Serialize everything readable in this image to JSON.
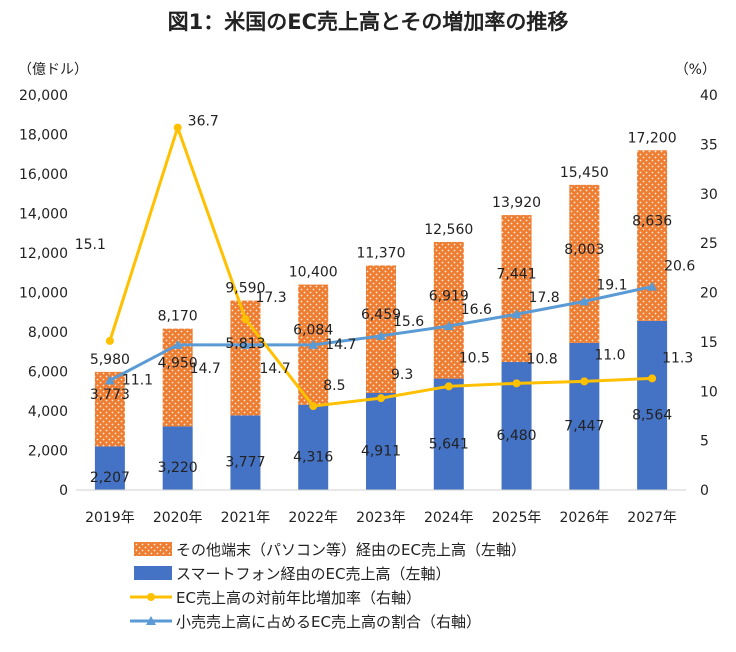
{
  "chart_data": {
    "type": "bar",
    "title": "図1：米国のEC売上高とその増加率の推移",
    "left_unit": "（億ドル）",
    "right_unit": "（%）",
    "categories": [
      "2019年",
      "2020年",
      "2021年",
      "2022年",
      "2023年",
      "2024年",
      "2025年",
      "2026年",
      "2027年"
    ],
    "stacked": true,
    "ylim": [
      0,
      20000
    ],
    "y_ticks": [
      "0",
      "2,000",
      "4,000",
      "6,000",
      "8,000",
      "10,000",
      "12,000",
      "14,000",
      "16,000",
      "18,000",
      "20,000"
    ],
    "y2lim": [
      0,
      40
    ],
    "y2_ticks": [
      "0",
      "5",
      "10",
      "15",
      "20",
      "25",
      "30",
      "35",
      "40"
    ],
    "grid": false,
    "legend_position": "bottom",
    "bar_series": [
      {
        "name": "スマートフォン経由のEC売上高（左軸）",
        "color": "#4472C4",
        "values": [
          2207,
          3220,
          3777,
          4316,
          4911,
          5641,
          6480,
          7447,
          8564
        ],
        "labels": [
          "2,207",
          "3,220",
          "3,777",
          "4,316",
          "4,911",
          "5,641",
          "6,480",
          "7,447",
          "8,564"
        ]
      },
      {
        "name": "その他端末（パソコン等）経由のEC売上高（左軸）",
        "color": "#ED7D31",
        "values": [
          3773,
          4950,
          5813,
          6084,
          6459,
          6919,
          7441,
          8003,
          8636
        ],
        "labels": [
          "3,773",
          "4,950",
          "5,813",
          "6,084",
          "6,459",
          "6,919",
          "7,441",
          "8,003",
          "8,636"
        ]
      }
    ],
    "totals": {
      "values": [
        5980,
        8170,
        9590,
        10400,
        11370,
        12560,
        13920,
        15450,
        17200
      ],
      "labels": [
        "5,980",
        "8,170",
        "9,590",
        "10,400",
        "11,370",
        "12,560",
        "13,920",
        "15,450",
        "17,200"
      ]
    },
    "line_series": [
      {
        "name": "EC売上高の対前年比増加率（右軸）",
        "color": "#FFC000",
        "marker": "circle",
        "values": [
          15.1,
          36.7,
          17.3,
          8.5,
          9.3,
          10.5,
          10.8,
          11.0,
          11.3
        ],
        "labels": [
          "15.1",
          "36.7",
          "17.3",
          "8.5",
          "9.3",
          "10.5",
          "10.8",
          "11.0",
          "11.3"
        ]
      },
      {
        "name": "小売売上高に占めるEC売上高の割合（右軸）",
        "color": "#5B9BD5",
        "marker": "triangle",
        "values": [
          11.1,
          14.7,
          14.7,
          14.7,
          15.6,
          16.6,
          17.8,
          19.1,
          20.6
        ],
        "labels": [
          "11.1",
          "14.7",
          "14.7",
          "14.7",
          "15.6",
          "16.6",
          "17.8",
          "19.1",
          "20.6"
        ]
      }
    ]
  }
}
